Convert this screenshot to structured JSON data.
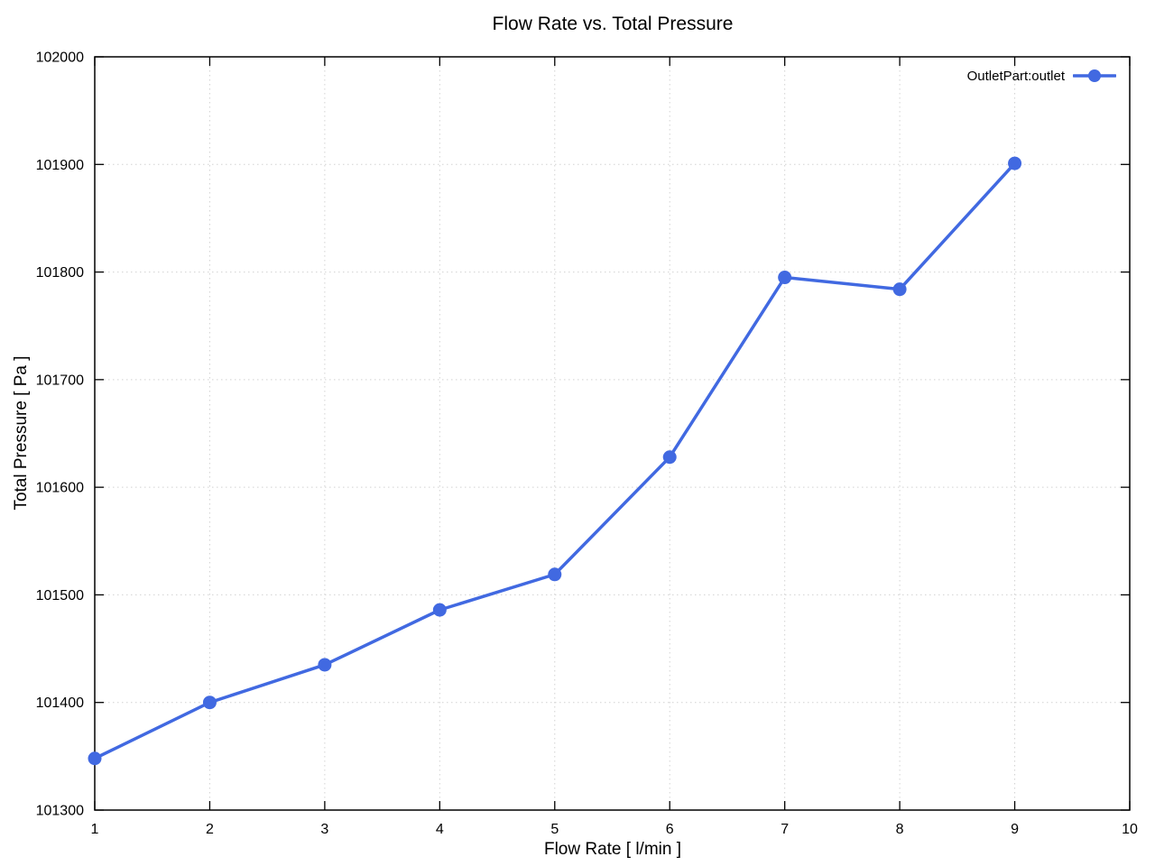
{
  "page": {
    "background": "#ffffff"
  },
  "chart_data": {
    "type": "line",
    "title": "Flow Rate vs. Total Pressure",
    "xlabel": "Flow Rate [ l/min ]",
    "ylabel": "Total Pressure [ Pa ]",
    "xlim": [
      1,
      10
    ],
    "ylim": [
      101300,
      102000
    ],
    "xticks": [
      1,
      2,
      3,
      4,
      5,
      6,
      7,
      8,
      9,
      10
    ],
    "yticks": [
      101300,
      101400,
      101500,
      101600,
      101700,
      101800,
      101900,
      102000
    ],
    "grid": true,
    "legend_position": "top-right-inside",
    "series": [
      {
        "name": "OutletPart:outlet",
        "x": [
          1,
          2,
          3,
          4,
          5,
          6,
          7,
          8,
          9
        ],
        "y": [
          101348,
          101400,
          101435,
          101486,
          101519,
          101628,
          101795,
          101784,
          101901
        ],
        "color": "#4169E1",
        "marker": "circle",
        "line_width": 3.5,
        "marker_radius": 7.5
      }
    ]
  },
  "colors": {
    "grid": "#d2d2d2",
    "border": "#000000",
    "tick": "#000000",
    "text": "#000000"
  }
}
